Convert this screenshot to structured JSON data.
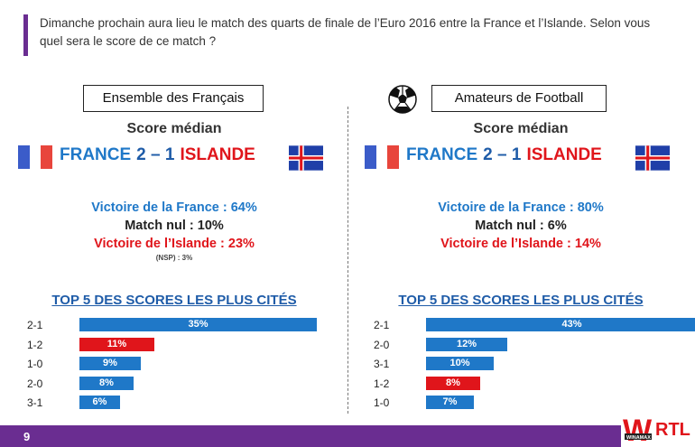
{
  "question": "Dimanche prochain aura lieu le match des quarts de finale de l’Euro 2016 entre la France et l’Islande. Selon vous quel sera le score de ce match ?",
  "colors": {
    "accent": "#6a2d91",
    "blue_bar": "#1f78c8",
    "red_bar": "#e0151b",
    "title_blue": "#1f5ca8"
  },
  "panels": [
    {
      "group_label": "Ensemble des Français",
      "score_title": "Score médian",
      "team_home": "FRANCE",
      "score": "2 – 1",
      "team_away": "ISLANDE",
      "stat_win": "Victoire de la France : 64%",
      "stat_draw": "Match nul : 10%",
      "stat_lose": "Victoire de l’Islande : 23%",
      "nsp": "(NSP) : 3%",
      "top5_title": "TOP 5 DES SCORES LES PLUS CITÉS",
      "bars": [
        {
          "score": "2-1",
          "label": "35%",
          "value": 35,
          "color": "blue"
        },
        {
          "score": "1-2",
          "label": "11%",
          "value": 11,
          "color": "red"
        },
        {
          "score": "1-0",
          "label": "9%",
          "value": 9,
          "color": "blue"
        },
        {
          "score": "2-0",
          "label": "8%",
          "value": 8,
          "color": "blue"
        },
        {
          "score": "3-1",
          "label": "6%",
          "value": 6,
          "color": "blue"
        }
      ]
    },
    {
      "group_label": "Amateurs de Football",
      "score_title": "Score médian",
      "team_home": "FRANCE",
      "score": "2 – 1",
      "team_away": "ISLANDE",
      "stat_win": "Victoire de la France : 80%",
      "stat_draw": "Match nul : 6%",
      "stat_lose": "Victoire de l’Islande : 14%",
      "top5_title": "TOP 5 DES SCORES LES PLUS CITÉS",
      "bars": [
        {
          "score": "2-1",
          "label": "43%",
          "value": 43,
          "color": "blue"
        },
        {
          "score": "2-0",
          "label": "12%",
          "value": 12,
          "color": "blue"
        },
        {
          "score": "3-1",
          "label": "10%",
          "value": 10,
          "color": "blue"
        },
        {
          "score": "1-2",
          "label": "8%",
          "value": 8,
          "color": "red"
        },
        {
          "score": "1-0",
          "label": "7%",
          "value": 7,
          "color": "blue"
        }
      ]
    }
  ],
  "footer": {
    "page_number": "9",
    "logo_text": "W",
    "logo_sub": "WINAMAX",
    "logo_brand": "RTL"
  }
}
